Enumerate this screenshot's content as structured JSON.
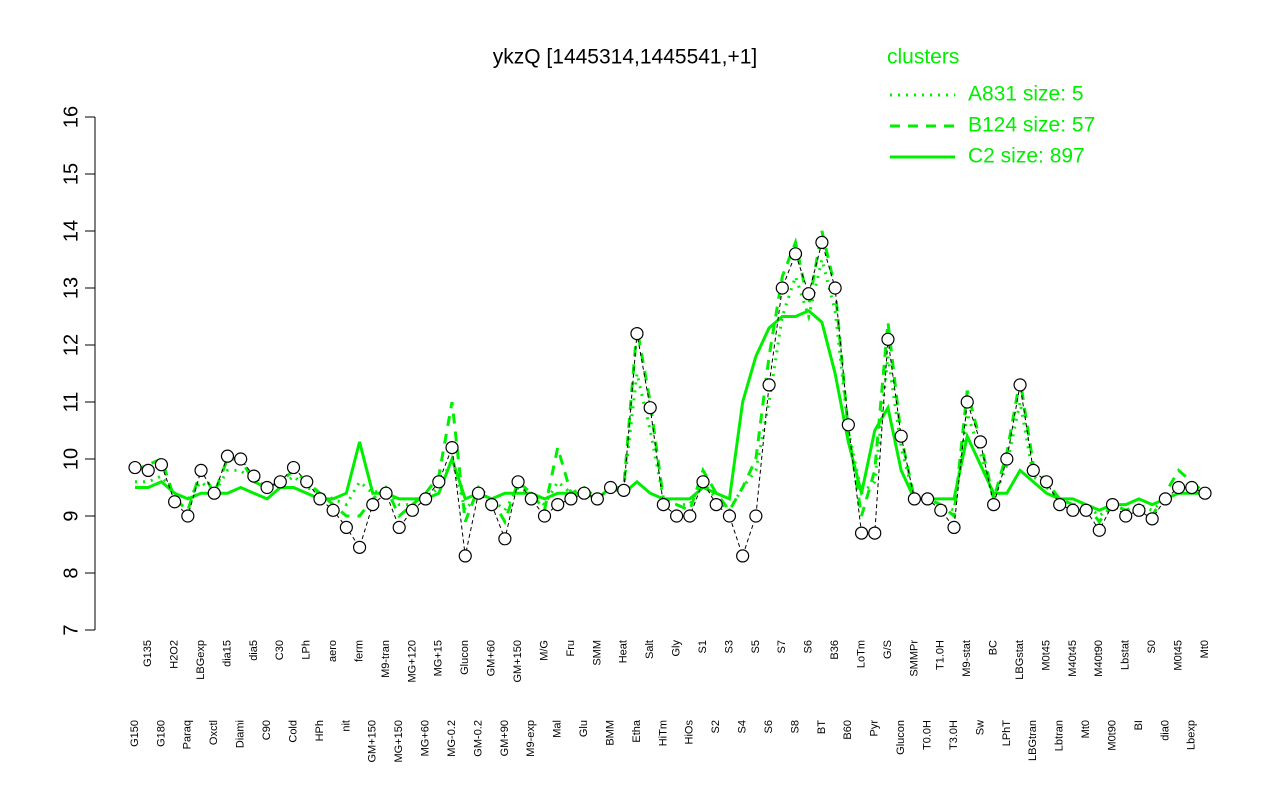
{
  "chart_data": {
    "type": "line",
    "title": "ykzQ [1445314,1445541,+1]",
    "legend_title": "clusters",
    "categories": [
      "G150",
      "G135",
      "G180",
      "H2O2",
      "Paraq",
      "LBGexp",
      "Oxctl",
      "dia15",
      "Diami",
      "dia5",
      "C90",
      "C30",
      "Cold",
      "LPh",
      "HPh",
      "aero",
      "nit",
      "ferm",
      "GM+150",
      "M9-tran",
      "MG+150",
      "MG+120",
      "MG+60",
      "MG+15",
      "MG-0.2",
      "Glucon",
      "GM-0.2",
      "GM+60",
      "GM+90",
      "GM+150",
      "M9-exp",
      "M/G",
      "Mal",
      "Fru",
      "Glu",
      "SMM",
      "BMM",
      "Heat",
      "Etha",
      "Salt",
      "HiTm",
      "Gly",
      "HiOs",
      "S1",
      "S2",
      "S3",
      "S4",
      "S5",
      "S6",
      "S7",
      "S8",
      "S6",
      "BT",
      "B36",
      "B60",
      "LoTm",
      "Pyr",
      "G/S",
      "Glucon",
      "SMMPr",
      "T0.0H",
      "T1.0H",
      "T3.0H",
      "M9-stat",
      "Sw",
      "BC",
      "LPhT",
      "LBGstat",
      "LBGtran",
      "M0t45",
      "Lbtran",
      "M40t45",
      "Mt0",
      "M40t90",
      "M0t90",
      "Lbstat",
      "BI",
      "S0",
      "dia0",
      "M0t45",
      "Lbexp",
      "Mt0"
    ],
    "points": {
      "color": "#ffffff",
      "values": [
        9.85,
        9.8,
        9.9,
        9.25,
        9.0,
        9.8,
        9.4,
        10.05,
        10.0,
        9.7,
        9.5,
        9.6,
        9.85,
        9.6,
        9.3,
        9.1,
        8.8,
        8.45,
        9.2,
        9.4,
        8.8,
        9.1,
        9.3,
        9.6,
        10.2,
        8.3,
        9.4,
        9.2,
        8.6,
        9.6,
        9.3,
        9.0,
        9.2,
        9.3,
        9.4,
        9.3,
        9.5,
        9.45,
        12.2,
        10.9,
        9.2,
        9.0,
        9.0,
        9.6,
        9.2,
        9.0,
        8.3,
        9.0,
        11.3,
        13.0,
        13.6,
        12.9,
        13.8,
        13.0,
        10.6,
        8.7,
        8.7,
        12.1,
        10.4,
        9.3,
        9.3,
        9.1,
        8.8,
        11.0,
        10.3,
        9.2,
        10.0,
        11.3,
        9.8,
        9.6,
        9.2,
        9.1,
        9.1,
        8.75,
        9.2,
        9.0,
        9.1,
        8.95,
        9.3,
        9.5,
        9.5,
        9.4
      ]
    },
    "series": [
      {
        "name": "A831 size: 5",
        "color": "#00ee00",
        "dash": "dotted",
        "values": [
          9.6,
          9.6,
          9.7,
          9.4,
          9.3,
          9.6,
          9.4,
          9.8,
          9.8,
          9.6,
          9.5,
          9.5,
          9.7,
          9.5,
          9.4,
          9.3,
          9.2,
          9.6,
          9.4,
          9.5,
          9.2,
          9.2,
          9.3,
          9.5,
          10.0,
          9.1,
          9.4,
          9.3,
          9.1,
          9.5,
          9.4,
          9.2,
          9.6,
          9.4,
          9.4,
          9.3,
          9.5,
          9.5,
          11.5,
          10.5,
          9.3,
          9.2,
          9.2,
          9.6,
          9.3,
          9.1,
          9.5,
          9.8,
          11.0,
          12.5,
          13.2,
          12.5,
          13.5,
          12.6,
          10.5,
          9.4,
          9.6,
          11.8,
          10.2,
          9.3,
          9.3,
          9.2,
          9.1,
          10.8,
          10.1,
          9.3,
          9.9,
          11.0,
          9.7,
          9.5,
          9.3,
          9.2,
          9.2,
          9.0,
          9.2,
          9.1,
          9.2,
          9.1,
          9.3,
          9.5,
          9.5,
          9.4
        ]
      },
      {
        "name": "B124 size: 57",
        "color": "#00ee00",
        "dash": "dashed",
        "values": [
          9.8,
          9.9,
          10.0,
          9.3,
          9.1,
          9.8,
          9.4,
          10.0,
          10.0,
          9.6,
          9.5,
          9.6,
          9.8,
          9.6,
          9.4,
          9.2,
          9.0,
          9.0,
          9.3,
          9.5,
          9.0,
          9.2,
          9.4,
          9.7,
          11.0,
          8.9,
          9.5,
          9.3,
          8.9,
          9.6,
          9.4,
          9.1,
          10.2,
          9.4,
          9.5,
          9.3,
          9.5,
          9.5,
          12.3,
          11.0,
          9.3,
          9.2,
          9.1,
          9.8,
          9.4,
          9.1,
          9.5,
          10.0,
          11.8,
          13.2,
          13.8,
          12.7,
          14.0,
          13.0,
          10.5,
          9.0,
          9.8,
          12.4,
          10.4,
          9.3,
          9.3,
          9.2,
          9.0,
          11.2,
          10.3,
          9.3,
          10.1,
          11.4,
          9.9,
          9.6,
          9.3,
          9.2,
          9.2,
          8.9,
          9.2,
          9.1,
          9.2,
          9.0,
          9.4,
          9.8,
          9.6,
          9.4
        ]
      },
      {
        "name": "C2 size: 897",
        "color": "#00ee00",
        "dash": "solid",
        "values": [
          9.5,
          9.5,
          9.6,
          9.4,
          9.3,
          9.4,
          9.4,
          9.4,
          9.5,
          9.4,
          9.3,
          9.5,
          9.5,
          9.4,
          9.3,
          9.3,
          9.4,
          10.3,
          9.4,
          9.4,
          9.3,
          9.3,
          9.3,
          9.4,
          10.0,
          9.3,
          9.4,
          9.3,
          9.4,
          9.4,
          9.4,
          9.3,
          9.4,
          9.4,
          9.4,
          9.3,
          9.5,
          9.4,
          9.6,
          9.4,
          9.3,
          9.3,
          9.3,
          9.5,
          9.4,
          9.3,
          11.0,
          11.8,
          12.3,
          12.5,
          12.5,
          12.6,
          12.4,
          11.5,
          10.3,
          9.4,
          10.5,
          10.9,
          9.8,
          9.3,
          9.3,
          9.3,
          9.3,
          10.4,
          9.9,
          9.4,
          9.4,
          9.8,
          9.6,
          9.4,
          9.3,
          9.3,
          9.2,
          9.1,
          9.2,
          9.2,
          9.3,
          9.2,
          9.3,
          9.4,
          9.4,
          9.4
        ]
      }
    ],
    "ylim": [
      7,
      16
    ],
    "yticks": [
      7,
      8,
      9,
      10,
      11,
      12,
      13,
      14,
      15,
      16
    ]
  }
}
